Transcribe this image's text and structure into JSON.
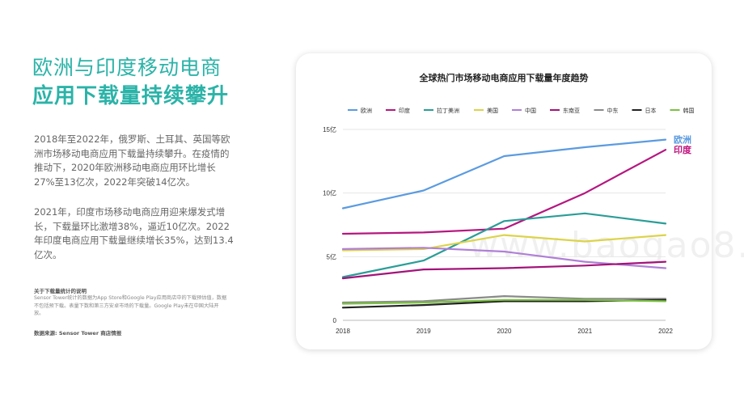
{
  "heading": {
    "line1": "欧洲与印度移动电商",
    "line2": "应用下载量持续攀升"
  },
  "paragraph1": "2018年至2022年，俄罗斯、土耳其、英国等欧洲市场移动电商应用下载量持续攀升。在疫情的推动下，2020年欧洲移动电商应用环比增长27%至13亿次，2022年突破14亿次。",
  "paragraph2": "2021年，印度市场移动电商应用迎来爆发式增长，下载量环比激增38%，逼近10亿次。2022年印度电商应用下载量继续增长35%，达到13.4亿次。",
  "note": {
    "title": "关于下载量统计的说明",
    "body": "Sensor Tower统计的数据为App Store和Google Play应用商店中的下载预估值，数据不包括预下载。表量下数和第三方安卓市场的下载量。Google Play未在中国大陆开放。"
  },
  "source": "数据来源: Sensor Tower 商店情报",
  "watermark": "www.baogao8.com",
  "chart_data": {
    "type": "line",
    "title": "全球热门市场移动电商应用下载量年度趋势",
    "x": [
      "2018",
      "2019",
      "2020",
      "2021",
      "2022"
    ],
    "ytick_labels": [
      "0",
      "5亿",
      "10亿",
      "15亿"
    ],
    "ylim": [
      0,
      15
    ],
    "legend_position": "top",
    "series": [
      {
        "name": "欧洲",
        "color": "#5b9be0",
        "values": [
          8.8,
          10.2,
          12.9,
          13.6,
          14.2
        ]
      },
      {
        "name": "印度",
        "color": "#b5177f",
        "values": [
          6.8,
          6.9,
          7.2,
          10.0,
          13.4
        ]
      },
      {
        "name": "拉丁美洲",
        "color": "#2a9d97",
        "values": [
          3.4,
          4.7,
          7.8,
          8.4,
          7.6
        ]
      },
      {
        "name": "美国",
        "color": "#dcd34a",
        "values": [
          5.5,
          5.6,
          6.7,
          6.2,
          6.7
        ]
      },
      {
        "name": "中国",
        "color": "#b07fd6",
        "values": [
          5.6,
          5.7,
          5.4,
          4.6,
          4.1
        ]
      },
      {
        "name": "东南亚",
        "color": "#a3137a",
        "values": [
          3.3,
          4.0,
          4.1,
          4.3,
          4.6
        ]
      },
      {
        "name": "中东",
        "color": "#8a8a8a",
        "values": [
          1.4,
          1.5,
          1.9,
          1.7,
          1.7
        ]
      },
      {
        "name": "日本",
        "color": "#222222",
        "values": [
          1.0,
          1.2,
          1.5,
          1.5,
          1.6
        ]
      },
      {
        "name": "韩国",
        "color": "#7bc043",
        "values": [
          1.3,
          1.4,
          1.6,
          1.6,
          1.5
        ]
      }
    ],
    "end_labels": [
      {
        "series": "欧洲",
        "text": "欧洲",
        "color": "#5b9be0"
      },
      {
        "series": "印度",
        "text": "印度",
        "color": "#c0147f"
      }
    ]
  }
}
